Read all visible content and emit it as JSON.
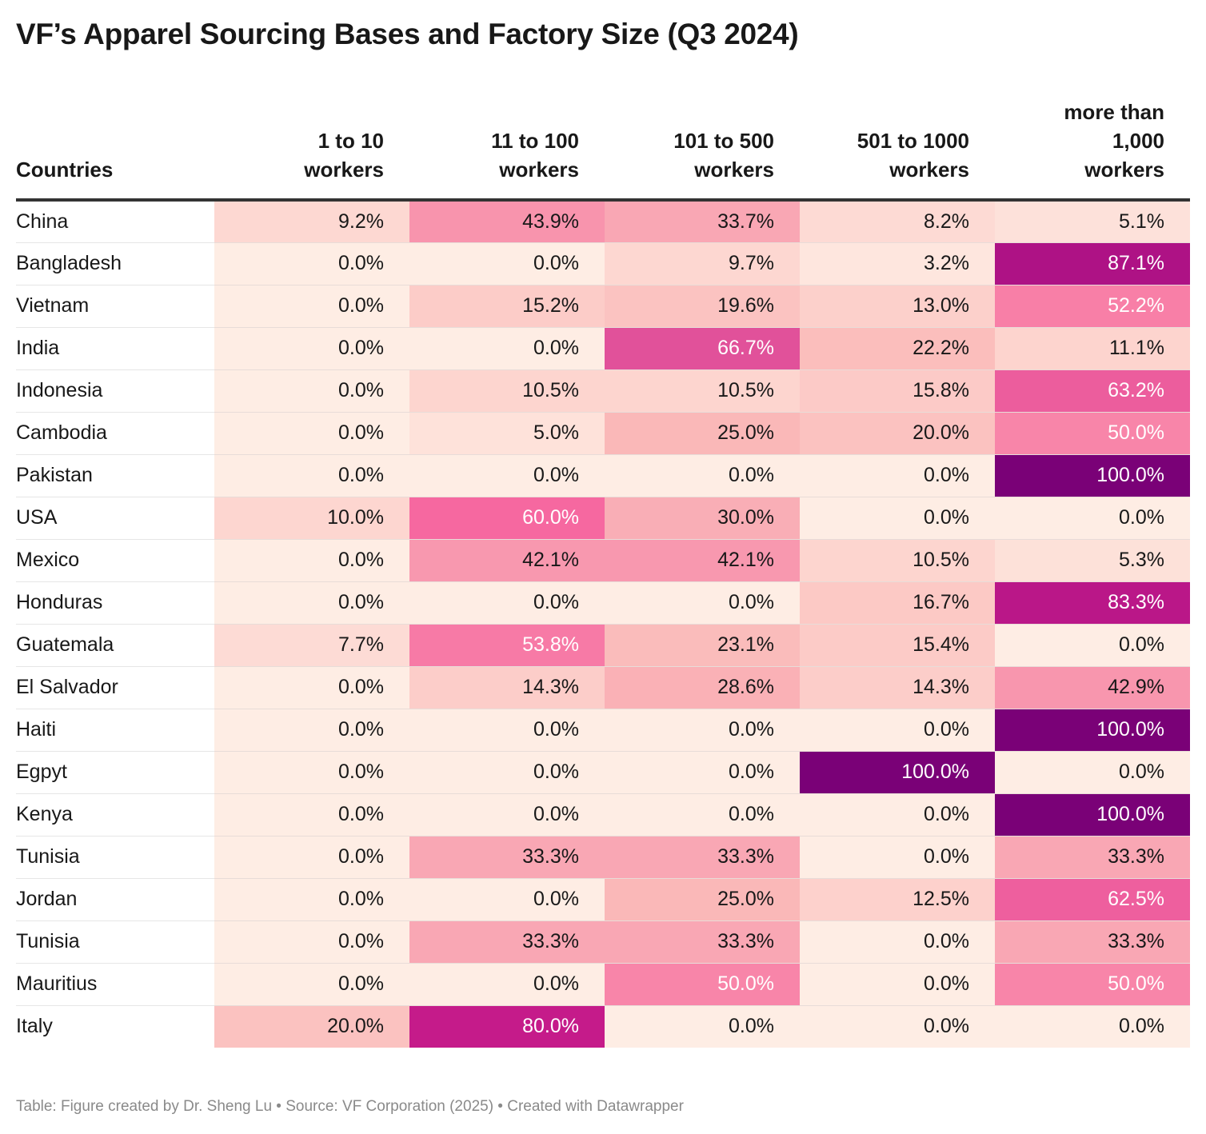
{
  "chart_data": {
    "type": "heatmap",
    "title": "VF’s Apparel Sourcing Bases and Factory Size (Q3 2024)",
    "row_header": "Countries",
    "columns": [
      "1 to 10 workers",
      "11 to 100 workers",
      "101 to 500 workers",
      "501 to 1000 workers",
      "more than 1,000 workers"
    ],
    "rows": [
      {
        "country": "China",
        "values": [
          9.2,
          43.9,
          33.7,
          8.2,
          5.1
        ]
      },
      {
        "country": "Bangladesh",
        "values": [
          0.0,
          0.0,
          9.7,
          3.2,
          87.1
        ]
      },
      {
        "country": "Vietnam",
        "values": [
          0.0,
          15.2,
          19.6,
          13.0,
          52.2
        ]
      },
      {
        "country": "India",
        "values": [
          0.0,
          0.0,
          66.7,
          22.2,
          11.1
        ]
      },
      {
        "country": "Indonesia",
        "values": [
          0.0,
          10.5,
          10.5,
          15.8,
          63.2
        ]
      },
      {
        "country": "Cambodia",
        "values": [
          0.0,
          5.0,
          25.0,
          20.0,
          50.0
        ]
      },
      {
        "country": "Pakistan",
        "values": [
          0.0,
          0.0,
          0.0,
          0.0,
          100.0
        ]
      },
      {
        "country": "USA",
        "values": [
          10.0,
          60.0,
          30.0,
          0.0,
          0.0
        ]
      },
      {
        "country": "Mexico",
        "values": [
          0.0,
          42.1,
          42.1,
          10.5,
          5.3
        ]
      },
      {
        "country": "Honduras",
        "values": [
          0.0,
          0.0,
          0.0,
          16.7,
          83.3
        ]
      },
      {
        "country": "Guatemala",
        "values": [
          7.7,
          53.8,
          23.1,
          15.4,
          0.0
        ]
      },
      {
        "country": "El Salvador",
        "values": [
          0.0,
          14.3,
          28.6,
          14.3,
          42.9
        ]
      },
      {
        "country": "Haiti",
        "values": [
          0.0,
          0.0,
          0.0,
          0.0,
          100.0
        ]
      },
      {
        "country": "Egpyt",
        "values": [
          0.0,
          0.0,
          0.0,
          100.0,
          0.0
        ]
      },
      {
        "country": "Kenya",
        "values": [
          0.0,
          0.0,
          0.0,
          0.0,
          100.0
        ]
      },
      {
        "country": "Tunisia",
        "values": [
          0.0,
          33.3,
          33.3,
          0.0,
          33.3
        ]
      },
      {
        "country": "Jordan",
        "values": [
          0.0,
          0.0,
          25.0,
          12.5,
          62.5
        ]
      },
      {
        "country": "Tunisia",
        "values": [
          0.0,
          33.3,
          33.3,
          0.0,
          33.3
        ]
      },
      {
        "country": "Mauritius",
        "values": [
          0.0,
          0.0,
          50.0,
          0.0,
          50.0
        ]
      },
      {
        "country": "Italy",
        "values": [
          20.0,
          80.0,
          0.0,
          0.0,
          0.0
        ]
      }
    ],
    "unit": "%",
    "color_scale": [
      "#feede4",
      "#fbc4be",
      "#f885a9",
      "#c51b8a",
      "#7a0177"
    ]
  },
  "footer": "Table: Figure created by Dr. Sheng Lu • Source: VF Corporation (2025) • Created with Datawrapper"
}
